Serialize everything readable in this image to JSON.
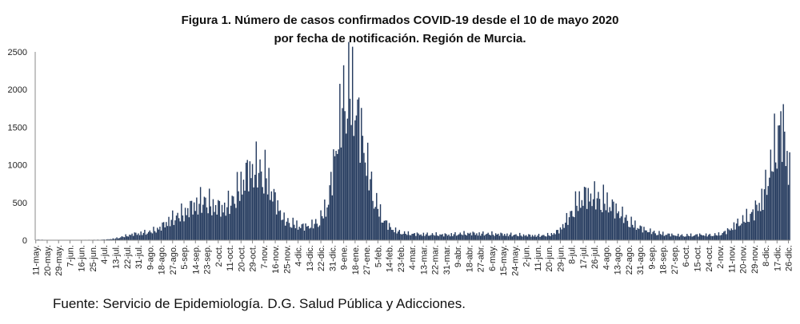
{
  "chart_data": {
    "type": "bar",
    "title_line1": "Figura 1. Número de casos confirmados COVID-19 desde el 10 de mayo 2020",
    "title_line2": "por fecha de notificación. Región de Murcia.",
    "xlabel": "",
    "ylabel": "",
    "ylim": [
      0,
      2500
    ],
    "yticks": [
      0,
      500,
      1000,
      1500,
      2000,
      2500
    ],
    "grid": false,
    "legend": "none",
    "bar_color": "#243a5e",
    "x_tick_labels": [
      "11-may.",
      "20-may.",
      "29-may.",
      "7-jun.",
      "16-jun.",
      "25-jun.",
      "4-jul.",
      "13-jul.",
      "22-jul.",
      "31-jul.",
      "9-ago.",
      "18-ago.",
      "27-ago.",
      "5-sep.",
      "14-sep.",
      "23-sep.",
      "2-oct.",
      "11-oct.",
      "20-oct.",
      "29-oct.",
      "7-nov.",
      "16-nov.",
      "25-nov.",
      "4-dic.",
      "13-dic.",
      "22-dic.",
      "31-dic.",
      "9-ene.",
      "18-ene.",
      "27-ene.",
      "5-feb.",
      "14-feb.",
      "23-feb.",
      "4-mar.",
      "13-mar.",
      "22-mar.",
      "31-mar.",
      "9-abr.",
      "18-abr.",
      "27-abr.",
      "6-may.",
      "15-may.",
      "24-may.",
      "2-jun.",
      "11-jun.",
      "20-jun.",
      "29-jun.",
      "8-jul.",
      "17-jul.",
      "26-jul.",
      "4-ago.",
      "13-ago.",
      "22-ago.",
      "31-ago.",
      "9-sep.",
      "18-sep.",
      "27-sep.",
      "6-oct.",
      "15-oct.",
      "24-oct.",
      "2-nov.",
      "11-nov.",
      "20-nov.",
      "29-nov.",
      "8-dic.",
      "17-dic.",
      "26-dic."
    ],
    "x_tick_step_days": 9,
    "weekly_points": [
      [
        "11-may.",
        8
      ],
      [
        "18-may.",
        5
      ],
      [
        "25-may.",
        4
      ],
      [
        "1-jun.",
        3
      ],
      [
        "8-jun.",
        3
      ],
      [
        "15-jun.",
        4
      ],
      [
        "22-jun.",
        5
      ],
      [
        "29-jun.",
        6
      ],
      [
        "6-jul.",
        10
      ],
      [
        "13-jul.",
        25
      ],
      [
        "20-jul.",
        55
      ],
      [
        "27-jul.",
        85
      ],
      [
        "3-ago.",
        100
      ],
      [
        "10-ago.",
        120
      ],
      [
        "17-ago.",
        170
      ],
      [
        "24-ago.",
        270
      ],
      [
        "31-ago.",
        340
      ],
      [
        "7-sep.",
        400
      ],
      [
        "14-sep.",
        500
      ],
      [
        "21-sep.",
        560
      ],
      [
        "28-sep.",
        480
      ],
      [
        "5-oct.",
        440
      ],
      [
        "12-oct.",
        520
      ],
      [
        "19-oct.",
        750
      ],
      [
        "26-oct.",
        950
      ],
      [
        "2-nov.",
        1000
      ],
      [
        "9-nov.",
        900
      ],
      [
        "16-nov.",
        550
      ],
      [
        "23-nov.",
        280
      ],
      [
        "30-nov.",
        230
      ],
      [
        "7-dic.",
        190
      ],
      [
        "14-dic.",
        200
      ],
      [
        "21-dic.",
        270
      ],
      [
        "28-dic.",
        550
      ],
      [
        "4-ene.",
        1400
      ],
      [
        "11-ene.",
        2150
      ],
      [
        "18-ene.",
        1950
      ],
      [
        "25-ene.",
        1300
      ],
      [
        "1-feb.",
        650
      ],
      [
        "8-feb.",
        320
      ],
      [
        "15-feb.",
        170
      ],
      [
        "22-feb.",
        110
      ],
      [
        "1-mar.",
        90
      ],
      [
        "8-mar.",
        85
      ],
      [
        "15-mar.",
        80
      ],
      [
        "22-mar.",
        80
      ],
      [
        "29-mar.",
        75
      ],
      [
        "5-abr.",
        80
      ],
      [
        "12-abr.",
        90
      ],
      [
        "19-abr.",
        95
      ],
      [
        "26-abr.",
        90
      ],
      [
        "3-may.",
        90
      ],
      [
        "10-may.",
        85
      ],
      [
        "17-may.",
        80
      ],
      [
        "24-may.",
        75
      ],
      [
        "31-may.",
        70
      ],
      [
        "7-jun.",
        65
      ],
      [
        "14-jun.",
        65
      ],
      [
        "21-jun.",
        75
      ],
      [
        "28-jun.",
        130
      ],
      [
        "5-jul.",
        300
      ],
      [
        "12-jul.",
        520
      ],
      [
        "19-jul.",
        620
      ],
      [
        "26-jul.",
        600
      ],
      [
        "2-ago.",
        560
      ],
      [
        "9-ago.",
        470
      ],
      [
        "16-ago.",
        360
      ],
      [
        "23-ago.",
        250
      ],
      [
        "30-ago.",
        180
      ],
      [
        "6-sep.",
        130
      ],
      [
        "13-sep.",
        100
      ],
      [
        "20-sep.",
        85
      ],
      [
        "27-sep.",
        70
      ],
      [
        "4-oct.",
        65
      ],
      [
        "11-oct.",
        70
      ],
      [
        "18-oct.",
        75
      ],
      [
        "25-oct.",
        70
      ],
      [
        "1-nov.",
        80
      ],
      [
        "8-nov.",
        130
      ],
      [
        "15-nov.",
        220
      ],
      [
        "22-nov.",
        300
      ],
      [
        "29-nov.",
        400
      ],
      [
        "6-dic.",
        600
      ],
      [
        "13-dic.",
        1100
      ],
      [
        "20-dic.",
        1650
      ],
      [
        "27-dic.",
        1000
      ]
    ]
  },
  "source_note": "Fuente: Servicio de Epidemiología. D.G. Salud Pública y Adicciones."
}
